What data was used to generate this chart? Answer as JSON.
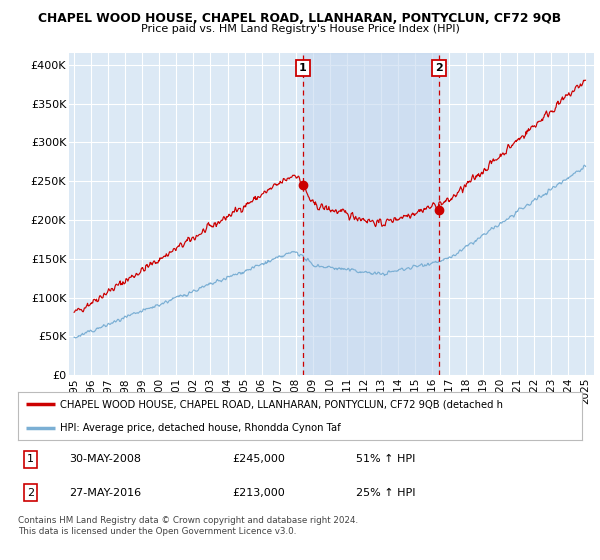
{
  "title1": "CHAPEL WOOD HOUSE, CHAPEL ROAD, LLANHARAN, PONTYCLUN, CF72 9QB",
  "title2": "Price paid vs. HM Land Registry's House Price Index (HPI)",
  "ylabel_ticks": [
    "£0",
    "£50K",
    "£100K",
    "£150K",
    "£200K",
    "£250K",
    "£300K",
    "£350K",
    "£400K"
  ],
  "ytick_vals": [
    0,
    50000,
    100000,
    150000,
    200000,
    250000,
    300000,
    350000,
    400000
  ],
  "ylim": [
    0,
    415000
  ],
  "xlim_start": 1994.7,
  "xlim_end": 2025.5,
  "xticks": [
    1995,
    1996,
    1997,
    1998,
    1999,
    2000,
    2001,
    2002,
    2003,
    2004,
    2005,
    2006,
    2007,
    2008,
    2009,
    2010,
    2011,
    2012,
    2013,
    2014,
    2015,
    2016,
    2017,
    2018,
    2019,
    2020,
    2021,
    2022,
    2023,
    2024,
    2025
  ],
  "bg_color": "#dce9f5",
  "shade_color": "#c5d8ef",
  "grid_color": "#ffffff",
  "red_line_color": "#cc0000",
  "blue_line_color": "#7bafd4",
  "marker1_x": 2008.42,
  "marker1_y": 245000,
  "marker2_x": 2016.42,
  "marker2_y": 213000,
  "vline1_x": 2008.42,
  "vline2_x": 2016.42,
  "legend_red_text": "CHAPEL WOOD HOUSE, CHAPEL ROAD, LLANHARAN, PONTYCLUN, CF72 9QB (detached h",
  "legend_blue_text": "HPI: Average price, detached house, Rhondda Cynon Taf",
  "annot1_num": "1",
  "annot1_date": "30-MAY-2008",
  "annot1_price": "£245,000",
  "annot1_hpi": "51% ↑ HPI",
  "annot2_num": "2",
  "annot2_date": "27-MAY-2016",
  "annot2_price": "£213,000",
  "annot2_hpi": "25% ↑ HPI",
  "footer": "Contains HM Land Registry data © Crown copyright and database right 2024.\nThis data is licensed under the Open Government Licence v3.0."
}
